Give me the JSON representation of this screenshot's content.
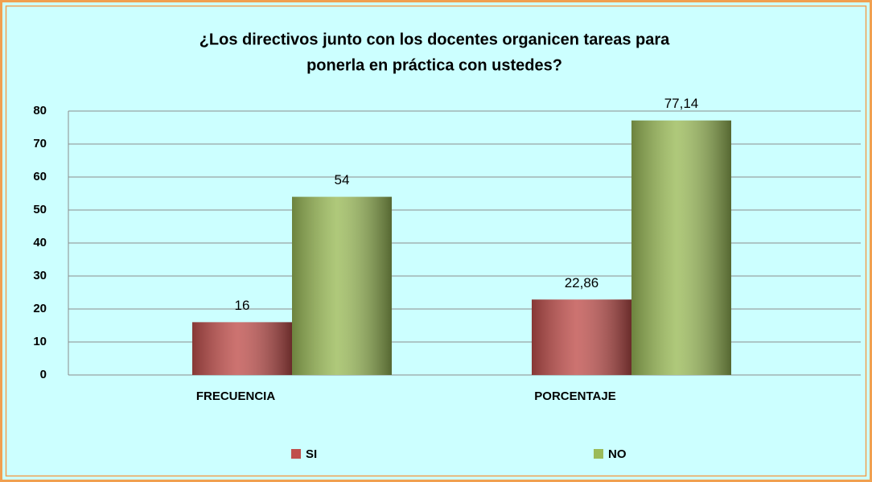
{
  "chart_data": {
    "type": "bar",
    "title": [
      "¿Los directivos junto con los docentes organicen tareas  para",
      "ponerla  en práctica con ustedes?"
    ],
    "categories": [
      "FRECUENCIA",
      "PORCENTAJE"
    ],
    "series": [
      {
        "name": "SI",
        "color": "#c0504d",
        "values": [
          16,
          22.86
        ],
        "value_labels": [
          "16",
          "22,86"
        ]
      },
      {
        "name": "NO",
        "color": "#9bbb59",
        "values": [
          54,
          77.14
        ],
        "value_labels": [
          "54",
          "77,14"
        ]
      }
    ],
    "ylim": [
      0,
      80
    ],
    "yticks": [
      0,
      10,
      20,
      30,
      40,
      50,
      60,
      70,
      80
    ],
    "grid": true,
    "legend": "bottom"
  }
}
